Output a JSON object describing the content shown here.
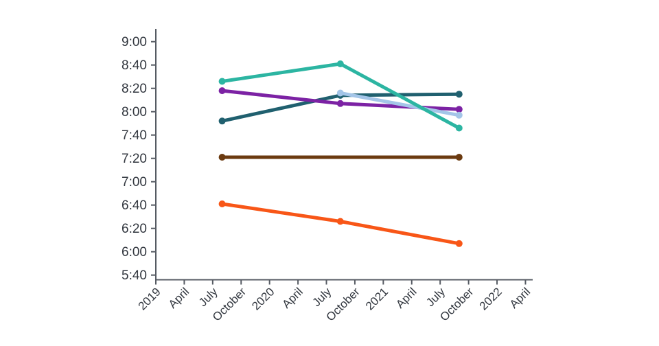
{
  "chart_data": {
    "type": "line",
    "title": "",
    "legend": "none",
    "grid": false,
    "x_axis": {
      "tick_labels": [
        "2019",
        "April",
        "July",
        "October",
        "2020",
        "April",
        "July",
        "October",
        "2021",
        "April",
        "July",
        "October",
        "2022",
        "April"
      ],
      "start": "2019-01",
      "months_per_tick": 3
    },
    "y_axis": {
      "tick_labels": [
        "9:00",
        "8:40",
        "8:20",
        "8:00",
        "7:40",
        "7:20",
        "7:00",
        "6:40",
        "6:20",
        "6:00",
        "5:40"
      ],
      "top_value": "9:00",
      "bottom_value": "5:40",
      "minutes_per_tick": 20
    },
    "series": [
      {
        "name": "series-dark-teal",
        "color": "#20606f",
        "points": [
          {
            "x": "2019-08-01",
            "time": "7:52"
          },
          {
            "x": "2020-08-15",
            "time": "8:14"
          },
          {
            "x": "2021-09-01",
            "time": "8:15"
          }
        ]
      },
      {
        "name": "series-purple",
        "color": "#7c22a4",
        "points": [
          {
            "x": "2019-08-01",
            "time": "8:18"
          },
          {
            "x": "2020-08-15",
            "time": "8:07"
          },
          {
            "x": "2021-09-01",
            "time": "8:02"
          }
        ]
      },
      {
        "name": "series-light-blue",
        "color": "#a4c5e8",
        "points": [
          {
            "x": "2020-08-15",
            "time": "8:16"
          },
          {
            "x": "2021-09-01",
            "time": "7:57"
          }
        ]
      },
      {
        "name": "series-teal-green",
        "color": "#2cb5a2",
        "points": [
          {
            "x": "2019-08-01",
            "time": "8:26"
          },
          {
            "x": "2020-08-15",
            "time": "8:41"
          },
          {
            "x": "2021-09-01",
            "time": "7:46"
          }
        ]
      },
      {
        "name": "series-brown",
        "color": "#6b3a10",
        "points": [
          {
            "x": "2019-08-01",
            "time": "7:21"
          },
          {
            "x": "2021-09-01",
            "time": "7:21"
          }
        ]
      },
      {
        "name": "series-orange",
        "color": "#f85617",
        "points": [
          {
            "x": "2019-08-01",
            "time": "6:41"
          },
          {
            "x": "2020-08-15",
            "time": "6:26"
          },
          {
            "x": "2021-09-01",
            "time": "6:07"
          }
        ]
      }
    ],
    "style": {
      "axis_color": "#565b63",
      "label_color": "#32373f",
      "line_width": 5,
      "marker_radius": 5
    }
  }
}
